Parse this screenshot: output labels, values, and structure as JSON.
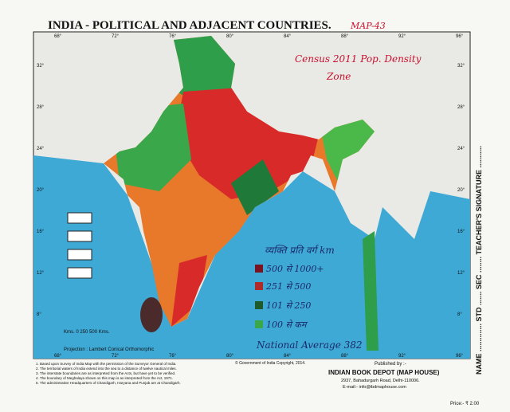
{
  "header": {
    "title": "INDIA - POLITICAL AND ADJACENT COUNTRIES.",
    "map_no": "MAP-43"
  },
  "note": {
    "line1": "Census 2011 Pop. Density",
    "line2": "Zone"
  },
  "legend": {
    "heading": "व्यक्ति प्रति वर्ग km",
    "items": [
      "500 से 1000+",
      "251 से 500",
      "101 से 250",
      "100 से कम"
    ],
    "average": "National Average 382"
  },
  "latitudes": [
    "32°",
    "28°",
    "24°",
    "20°",
    "16°",
    "12°",
    "8°"
  ],
  "longitudes": [
    "68°",
    "72°",
    "76°",
    "80°",
    "84°",
    "88°",
    "92°",
    "96°"
  ],
  "scale": "Kms. 0      250      500 Kms.",
  "projection": "Projection : Lambert Conical Orthomorphic",
  "footnotes": [
    "1. Based upon Survey of India Map with the permission of the Surveyor General of India.",
    "2. The territorial waters of India extend into the sea to a distance of twelve nautical miles.",
    "3. The interstate boundaries are as interpreted from the Acts, but have yet to be verified.",
    "4. The boundary of Meghalaya shown on this map is as interpreted from the Act, 1971.",
    "5. The administrative Headquarters of Chandigarh, Haryana and Punjab are at Chandigarh."
  ],
  "copyright": "© Government of India Copyright, 2014.",
  "publisher": {
    "label": "Published by :-",
    "name": "INDIAN BOOK DEPOT (MAP HOUSE)",
    "address": "2937, Bahadurgarh Road, Delhi-110006.",
    "email": "E-mail:- info@ibdmaphouse.com",
    "price": "Price:- ₹ 2.00"
  },
  "side": "NAME .............. STD ....... SEC ........ TEACHER'S SIGNATURE ..........."
}
